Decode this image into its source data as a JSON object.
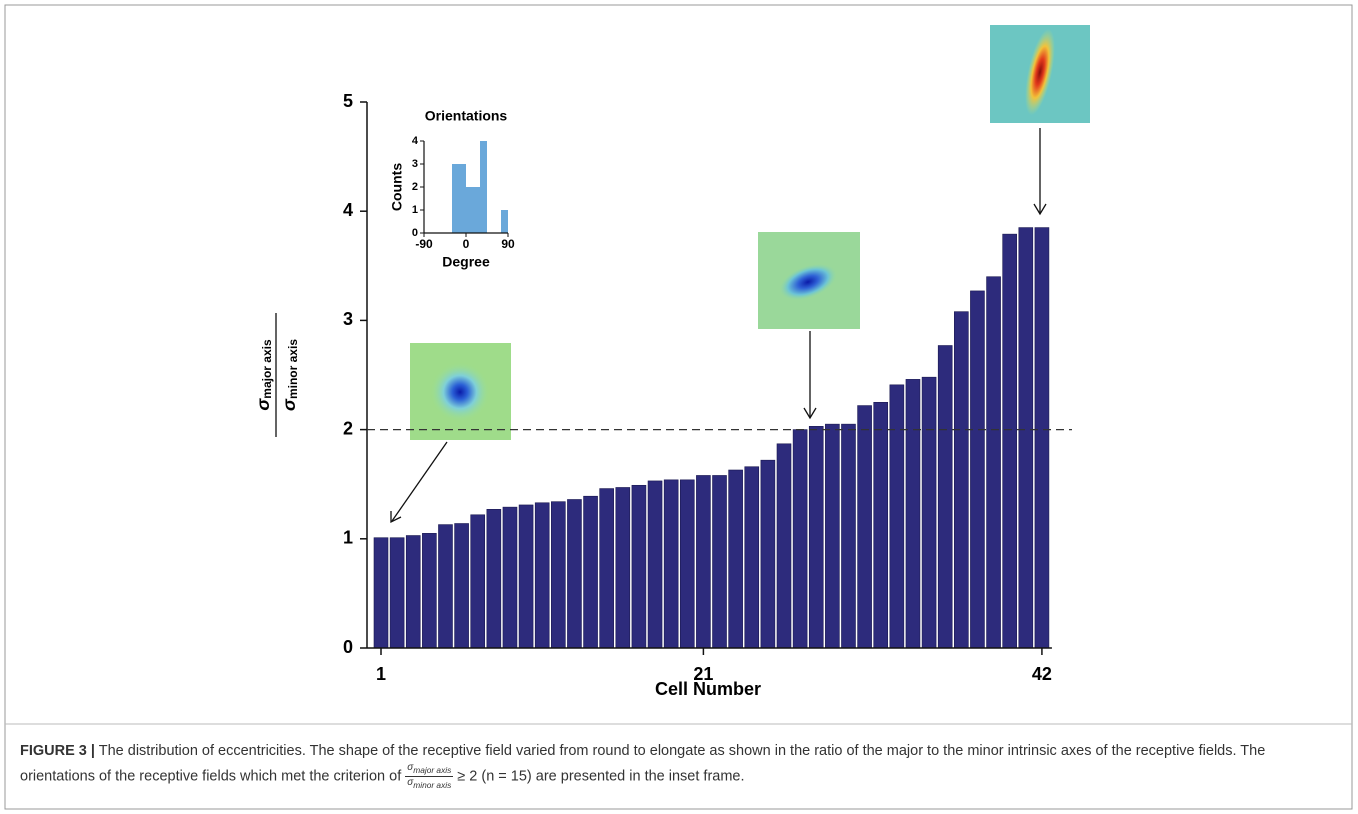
{
  "chart_data": [
    {
      "type": "bar",
      "xlabel": "Cell Number",
      "ylabel": {
        "numerator": {
          "symbol": "σ",
          "sub": "major axis"
        },
        "denominator": {
          "symbol": "σ",
          "sub": "minor axis"
        }
      },
      "categories": [
        "1",
        null,
        null,
        null,
        null,
        null,
        null,
        null,
        null,
        null,
        null,
        null,
        null,
        null,
        null,
        null,
        null,
        null,
        null,
        null,
        "21",
        null,
        null,
        null,
        null,
        null,
        null,
        null,
        null,
        null,
        null,
        null,
        null,
        null,
        null,
        null,
        null,
        null,
        null,
        null,
        null,
        "42"
      ],
      "values": [
        1.01,
        1.01,
        1.03,
        1.05,
        1.13,
        1.14,
        1.22,
        1.27,
        1.29,
        1.31,
        1.33,
        1.34,
        1.36,
        1.39,
        1.46,
        1.47,
        1.49,
        1.53,
        1.54,
        1.54,
        1.58,
        1.58,
        1.63,
        1.66,
        1.72,
        1.87,
        2.0,
        2.03,
        2.05,
        2.05,
        2.22,
        2.25,
        2.41,
        2.46,
        2.48,
        2.77,
        3.08,
        3.27,
        3.4,
        3.79,
        3.85,
        3.85
      ],
      "color": "#2d2b7c",
      "ylim": [
        0,
        5
      ],
      "yticks": [
        0,
        1,
        2,
        3,
        4,
        5
      ],
      "reference_line": 2
    },
    {
      "type": "histogram",
      "title": "Orientations",
      "xlabel": "Degree",
      "ylabel": "Counts",
      "bins": [
        -90,
        -75,
        -60,
        -45,
        -30,
        -15,
        0,
        15,
        30,
        45,
        60,
        75,
        90
      ],
      "values": [
        0,
        0,
        0,
        0,
        3,
        3,
        2,
        2,
        4,
        0,
        0,
        1
      ],
      "color": "#6aa8da",
      "xlim": [
        -90,
        90
      ],
      "xticks": [
        -90,
        0,
        90
      ],
      "ylim": [
        0,
        4
      ],
      "yticks": [
        0,
        1,
        2,
        3,
        4
      ]
    }
  ],
  "caption": {
    "label": "FIGURE 3 |",
    "text_before": "The distribution of eccentricities. The shape of the receptive field varied from round to elongate as shown in the ratio of the major to the minor intrinsic axes of the receptive fields. The orientations of the receptive fields which met the criterion of",
    "frac_numerator": {
      "symbol": "σ",
      "sub": "major axis"
    },
    "frac_denominator": {
      "symbol": "σ",
      "sub": "minor axis"
    },
    "text_after": "≥ 2 (n = 15) are presented in the inset frame."
  }
}
